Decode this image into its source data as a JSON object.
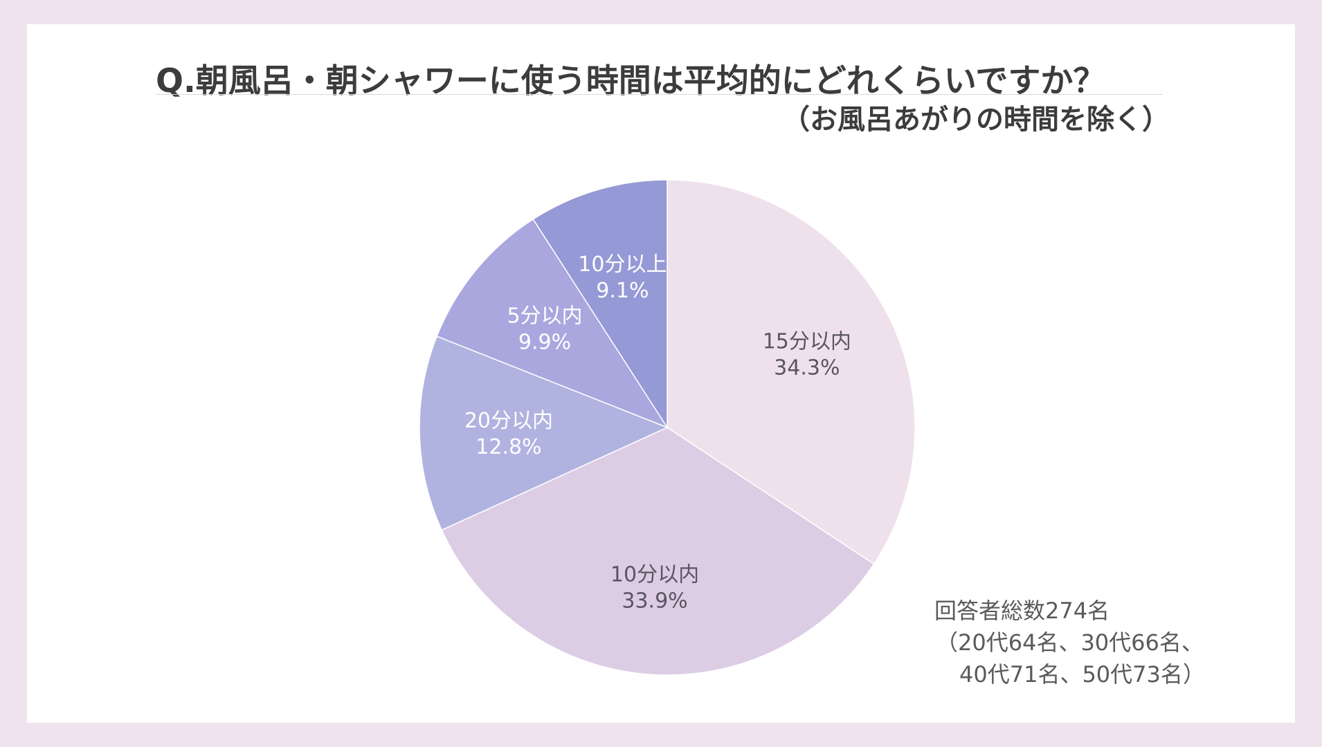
{
  "title": "Q.朝風呂・朝シャワーに使う時間は平均的にどれくらいですか？",
  "subtitle": "（お風呂あがりの時間を除く）",
  "note": {
    "line1": "回答者総数274名",
    "line2": "（20代64名、30代66名、",
    "line3": "40代71名、50代73名）"
  },
  "chart_data": {
    "type": "pie",
    "start": "12 o'clock",
    "direction": "clockwise",
    "slices": [
      {
        "label": "15分以内",
        "value": 34.3,
        "value_label": "34.3%",
        "color": "#efe1ec",
        "text_color": "#5a5560"
      },
      {
        "label": "10分以内",
        "value": 33.9,
        "value_label": "33.9%",
        "color": "#dccde5",
        "text_color": "#5a5560"
      },
      {
        "label": "20分以内",
        "value": 12.8,
        "value_label": "12.8%",
        "color": "#b0b3e0",
        "text_color": "#ffffff"
      },
      {
        "label": "5分以内",
        "value": 9.9,
        "value_label": "9.9%",
        "color": "#aaa7df",
        "text_color": "#ffffff"
      },
      {
        "label": "10分以上",
        "value": 9.1,
        "value_label": "9.1%",
        "color": "#9599d5",
        "text_color": "#ffffff"
      }
    ]
  }
}
